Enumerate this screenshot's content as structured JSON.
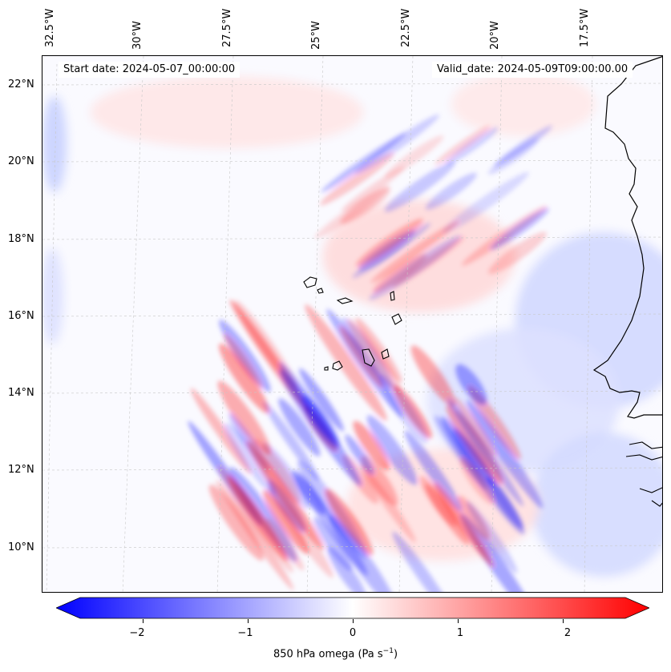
{
  "map": {
    "start_date": "Start date: 2024-05-07_00:00:00",
    "valid_date": "Valid_date: 2024-05-09T09:00:00.00",
    "lon_labels": [
      "32.5°W",
      "30°W",
      "27.5°W",
      "25°W",
      "22.5°W",
      "20°W",
      "17.5°W"
    ],
    "lat_labels": [
      "22°N",
      "20°N",
      "18°N",
      "16°N",
      "14°N",
      "12°N",
      "10°N"
    ],
    "field": "850 hPa omega",
    "colors": {
      "negative": "#0000ff",
      "zero": "#ffffff",
      "positive": "#ff0000",
      "coast": "#000000",
      "grid": "#c8c8c8"
    }
  },
  "colorbar": {
    "ticks": [
      "−2",
      "−1",
      "0",
      "1",
      "2"
    ],
    "tick_values": [
      -2,
      -1,
      0,
      1,
      2
    ],
    "range": [
      -2.6,
      2.6
    ],
    "label_main": "850 hPa omega (Pa s",
    "label_sup": "−1",
    "label_end": ")"
  }
}
